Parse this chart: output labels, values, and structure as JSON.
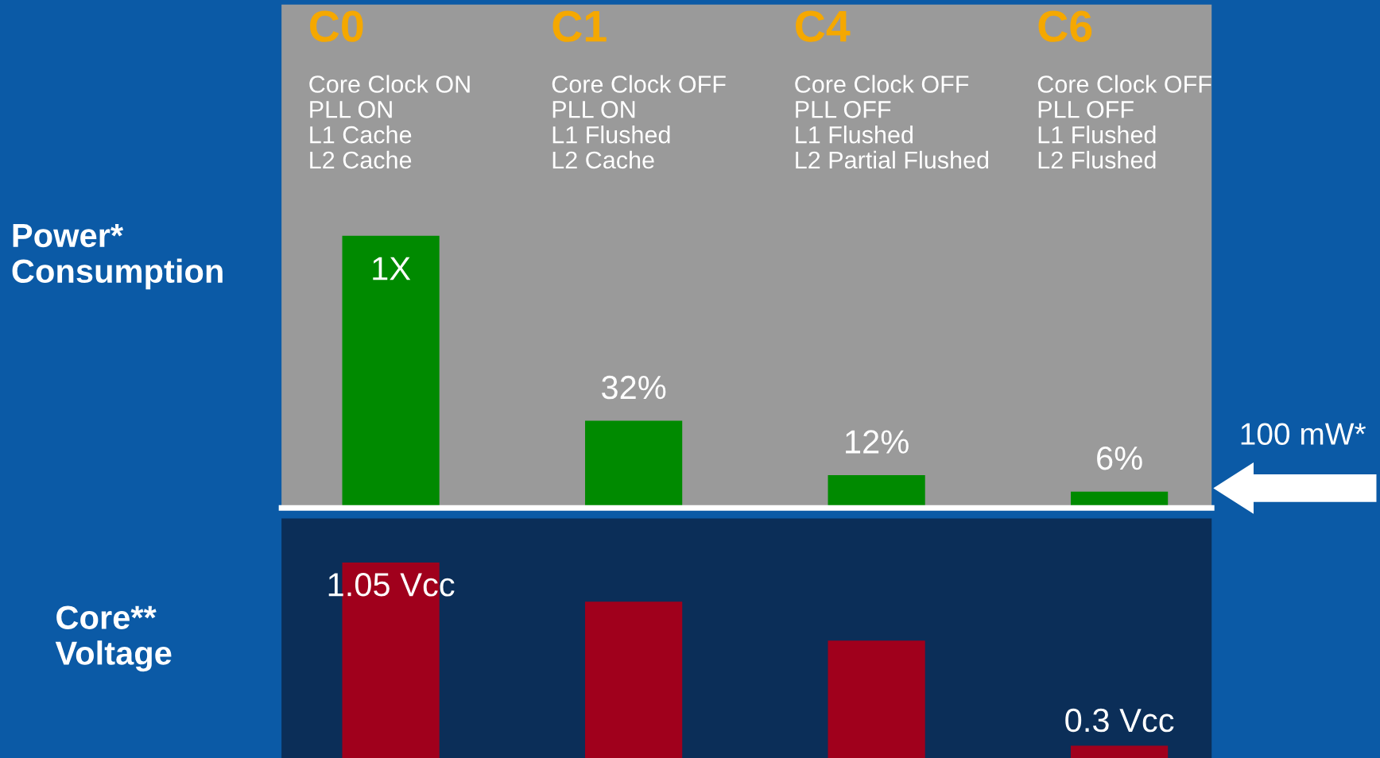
{
  "chart_data": [
    {
      "type": "bar",
      "ylabel": "Power*\nConsumption",
      "categories": [
        "C0",
        "C1",
        "C4",
        "C6"
      ],
      "ylim": [
        0,
        1.85
      ],
      "tick_labels": false,
      "values": [
        1,
        0.32,
        0.12,
        0.06
      ],
      "colors": [
        "#008a00",
        "#008a00",
        "#008a00",
        "#008a00"
      ],
      "value_labels": [
        "1X",
        "32%",
        "12%",
        "6%"
      ],
      "annotations": [
        "Core Clock ON\nPLL ON\nL1 Cache\nL2 Cache",
        "Core Clock OFF\nPLL ON\nL1 Flushed\nL2 Cache",
        "Core Clock OFF\nPLL OFF\nL1 Flushed\nL2 Partial Flushed",
        "Core Clock OFF\nPLL OFF\nL1 Flushed\nL2 Flushed",
        "100 mW*"
      ]
    },
    {
      "type": "bar",
      "ylabel": "Core**\nVoltage",
      "categories": [
        null,
        null,
        null,
        null
      ],
      "ylim": [
        0.25,
        1.23
      ],
      "tick_labels": false,
      "values": [
        1.05,
        0.89,
        0.73,
        0.3
      ],
      "colors": [
        "#a0001c",
        "#a0001c",
        "#a0001c",
        "#a0001c"
      ],
      "value_labels": [
        "1.05 Vcc",
        null,
        null,
        "0.3 Vcc"
      ]
    }
  ]
}
